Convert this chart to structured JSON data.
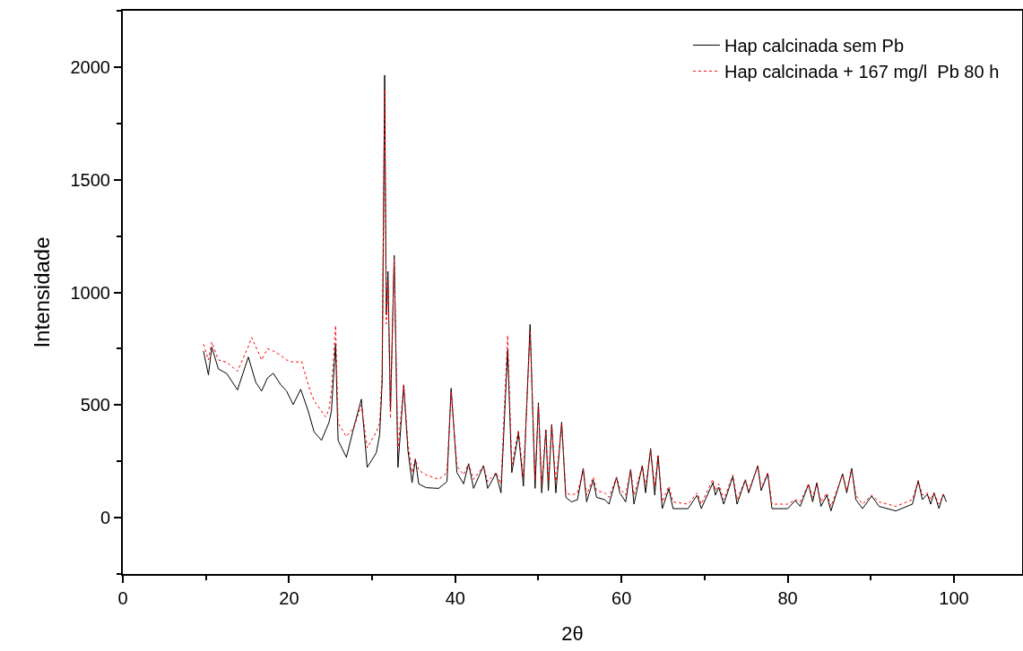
{
  "chart_data": {
    "type": "line",
    "xlabel": "2θ",
    "ylabel": "Intensidade",
    "xlim": [
      0,
      108.2
    ],
    "ylim": [
      -250,
      2250
    ],
    "xticks": [
      0,
      20,
      40,
      60,
      80,
      100
    ],
    "yticks": [
      0,
      500,
      1000,
      1500,
      2000
    ],
    "grid": false,
    "legend": "top right",
    "marker": "none",
    "series": [
      {
        "name": "Hap calcinada sem Pb",
        "color": "#000000",
        "line_style": "solid",
        "x": [
          9.7,
          10.3,
          10.7,
          11.5,
          12.5,
          13.8,
          15.1,
          16.0,
          16.7,
          17.4,
          18.1,
          19.0,
          19.7,
          20.5,
          21.4,
          22.3,
          23.0,
          23.9,
          24.8,
          25.1,
          25.6,
          25.9,
          26.9,
          27.8,
          28.7,
          29.4,
          30.5,
          30.9,
          31.2,
          31.5,
          31.7,
          31.9,
          32.2,
          32.65,
          33.1,
          33.8,
          34.3,
          34.8,
          35.2,
          35.6,
          36.5,
          38.0,
          39.0,
          39.5,
          40.2,
          41.0,
          41.6,
          42.2,
          43.4,
          43.9,
          44.9,
          45.5,
          46.3,
          46.8,
          47.6,
          48.2,
          49.0,
          49.6,
          50.0,
          50.4,
          50.9,
          51.2,
          51.6,
          52.1,
          52.8,
          53.3,
          54.0,
          54.7,
          55.4,
          55.8,
          56.6,
          57.0,
          58.0,
          58.5,
          59.4,
          59.8,
          60.5,
          61.1,
          61.5,
          62.5,
          62.9,
          63.5,
          64.0,
          64.4,
          64.9,
          65.7,
          66.2,
          68.0,
          69.1,
          69.6,
          71.0,
          71.3,
          71.7,
          72.3,
          73.4,
          73.9,
          74.9,
          75.3,
          76.4,
          76.8,
          77.6,
          78.1,
          80.0,
          80.9,
          81.5,
          82.5,
          83.0,
          83.5,
          84.0,
          84.7,
          85.2,
          86.6,
          87.1,
          87.7,
          88.2,
          89.0,
          90.1,
          91.0,
          93.0,
          95.0,
          95.7,
          96.2,
          96.8,
          97.2,
          97.6,
          98.2,
          98.7,
          99.1
        ],
        "values": [
          740,
          634,
          757,
          660,
          640,
          567,
          713,
          600,
          562,
          620,
          641,
          590,
          562,
          502,
          570,
          474,
          382,
          343,
          422,
          474,
          773,
          343,
          268,
          402,
          526,
          223,
          288,
          368,
          600,
          1964,
          900,
          1093,
          474,
          1164,
          223,
          587,
          300,
          155,
          260,
          150,
          133,
          130,
          160,
          574,
          200,
          150,
          239,
          130,
          231,
          130,
          197,
          110,
          745,
          200,
          374,
          140,
          858,
          130,
          510,
          110,
          390,
          120,
          414,
          110,
          424,
          90,
          70,
          80,
          219,
          70,
          167,
          90,
          80,
          60,
          179,
          110,
          70,
          215,
          60,
          231,
          110,
          307,
          100,
          275,
          40,
          128,
          40,
          40,
          100,
          40,
          155,
          100,
          135,
          60,
          183,
          60,
          167,
          110,
          231,
          120,
          195,
          40,
          40,
          76,
          50,
          147,
          70,
          155,
          50,
          100,
          30,
          195,
          110,
          219,
          80,
          40,
          96,
          50,
          30,
          60,
          163,
          80,
          104,
          60,
          110,
          40,
          104,
          70
        ]
      },
      {
        "name": "Hap calcinada + 167 mg/l  Pb 80 h",
        "color": "#ff0000",
        "line_style": "dotted",
        "x": [
          9.7,
          10.3,
          10.7,
          11.5,
          12.5,
          13.8,
          15.1,
          15.5,
          16.7,
          17.4,
          18.1,
          19.0,
          19.7,
          20.5,
          21.5,
          22.5,
          23.0,
          24.4,
          24.8,
          25.1,
          25.6,
          25.9,
          26.9,
          27.8,
          28.7,
          29.4,
          30.5,
          30.9,
          31.2,
          31.5,
          31.7,
          31.9,
          32.2,
          32.65,
          33.1,
          33.8,
          34.3,
          34.8,
          35.2,
          35.6,
          36.5,
          38.0,
          39.0,
          39.5,
          40.2,
          41.0,
          41.6,
          42.2,
          43.4,
          43.9,
          44.9,
          45.5,
          46.3,
          46.8,
          47.6,
          48.2,
          49.0,
          49.6,
          50.0,
          50.4,
          50.9,
          51.2,
          51.6,
          52.1,
          52.8,
          53.3,
          54.0,
          54.7,
          55.4,
          55.8,
          56.6,
          57.0,
          58.0,
          58.5,
          59.4,
          59.8,
          60.5,
          61.1,
          61.5,
          62.5,
          62.9,
          63.5,
          64.0,
          64.4,
          64.9,
          65.7,
          66.2,
          68.0,
          69.1,
          69.6,
          71.0,
          71.3,
          71.7,
          72.3,
          73.4,
          73.9,
          74.9,
          75.3,
          76.4,
          76.8,
          77.6,
          78.1,
          80.0,
          80.9,
          81.5,
          82.5,
          83.0,
          83.5,
          84.0,
          84.7,
          85.2,
          86.6,
          87.1,
          87.7,
          88.2,
          89.0,
          90.1,
          91.0,
          93.0,
          95.0,
          95.7,
          96.2,
          96.8,
          97.2,
          97.6,
          98.2,
          98.7,
          99.1
        ],
        "values": [
          770,
          700,
          780,
          700,
          690,
          650,
          760,
          800,
          700,
          750,
          740,
          720,
          700,
          690,
          693,
          567,
          520,
          447,
          480,
          560,
          853,
          420,
          360,
          400,
          500,
          310,
          380,
          420,
          650,
          1900,
          860,
          1050,
          440,
          1150,
          300,
          590,
          330,
          200,
          260,
          210,
          190,
          170,
          200,
          560,
          230,
          190,
          240,
          170,
          230,
          160,
          200,
          150,
          809,
          230,
          390,
          180,
          830,
          170,
          500,
          150,
          390,
          160,
          410,
          150,
          420,
          110,
          100,
          110,
          215,
          100,
          180,
          120,
          110,
          90,
          180,
          130,
          100,
          215,
          100,
          230,
          140,
          300,
          140,
          280,
          70,
          140,
          70,
          60,
          110,
          60,
          170,
          120,
          150,
          80,
          190,
          80,
          170,
          120,
          230,
          130,
          200,
          60,
          60,
          80,
          70,
          150,
          90,
          155,
          70,
          110,
          50,
          190,
          120,
          215,
          100,
          60,
          100,
          70,
          50,
          80,
          165,
          100,
          110,
          80,
          110,
          60,
          100,
          90
        ]
      }
    ]
  }
}
